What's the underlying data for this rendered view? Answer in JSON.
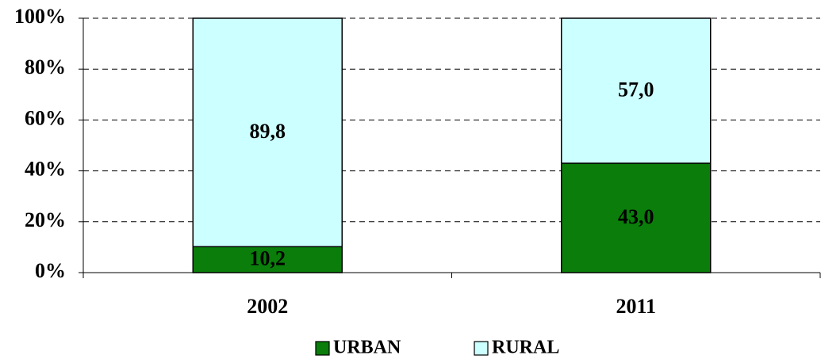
{
  "chart_data": {
    "type": "stacked_bar",
    "categories": [
      "2002",
      "2011"
    ],
    "series": [
      {
        "name": "URBAN",
        "color": "#0a7d0a",
        "values": [
          10.2,
          43.0
        ],
        "value_labels": [
          "10,2",
          "43,0"
        ]
      },
      {
        "name": "RURAL",
        "color": "#ccffff",
        "values": [
          89.8,
          57.0
        ],
        "value_labels": [
          "89,8",
          "57,0"
        ]
      }
    ],
    "ylim": [
      0,
      100
    ],
    "yticks": [
      {
        "value": 0,
        "label": "0%"
      },
      {
        "value": 20,
        "label": "20%"
      },
      {
        "value": 40,
        "label": "40%"
      },
      {
        "value": 60,
        "label": "60%"
      },
      {
        "value": 80,
        "label": "80%"
      },
      {
        "value": 100,
        "label": "100%"
      }
    ],
    "grid": true,
    "legend": "bottom"
  }
}
